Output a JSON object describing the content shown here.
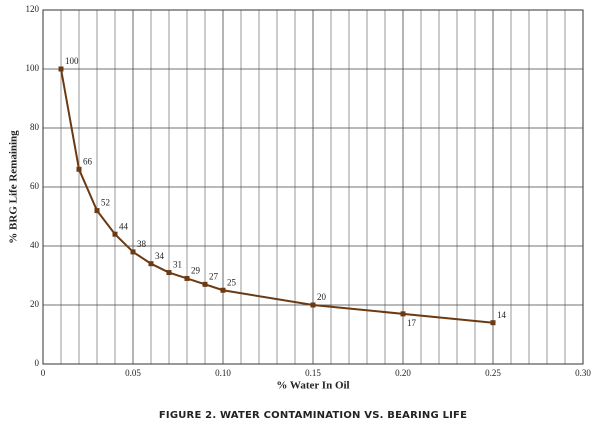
{
  "chart_data": {
    "type": "line",
    "title": "FIGURE 2.  WATER CONTAMINATION VS. BEARING LIFE",
    "x_label": "% Water In Oil",
    "y_label": "% BRG Life Remaining",
    "x": [
      0.01,
      0.02,
      0.03,
      0.04,
      0.05,
      0.06,
      0.07,
      0.08,
      0.09,
      0.1,
      0.15,
      0.2,
      0.25
    ],
    "series": [
      {
        "color": "#6b3a12",
        "values": [
          100,
          66,
          52,
          44,
          38,
          34,
          31,
          29,
          27,
          25,
          20,
          17,
          14
        ]
      }
    ],
    "xlim": [
      0,
      0.3
    ],
    "ylim": [
      0,
      120
    ],
    "xticks": [
      0,
      0.05,
      {
        "value": 0.1,
        "label": "0.10"
      },
      0.15,
      {
        "value": 0.2,
        "label": "0.20"
      },
      0.25,
      {
        "value": 0.3,
        "label": "0.30"
      }
    ],
    "minor_xticks": [
      0.01,
      0.02,
      0.03,
      0.04,
      0.06,
      0.07,
      0.08,
      0.09,
      0.11,
      0.12,
      0.13,
      0.14,
      0.16,
      0.17,
      0.18,
      0.19,
      0.21,
      0.22,
      0.23,
      0.24,
      0.26,
      0.27,
      0.28,
      0.29
    ],
    "yticks": [
      0,
      20,
      40,
      60,
      80,
      100,
      120
    ],
    "grid": true
  }
}
